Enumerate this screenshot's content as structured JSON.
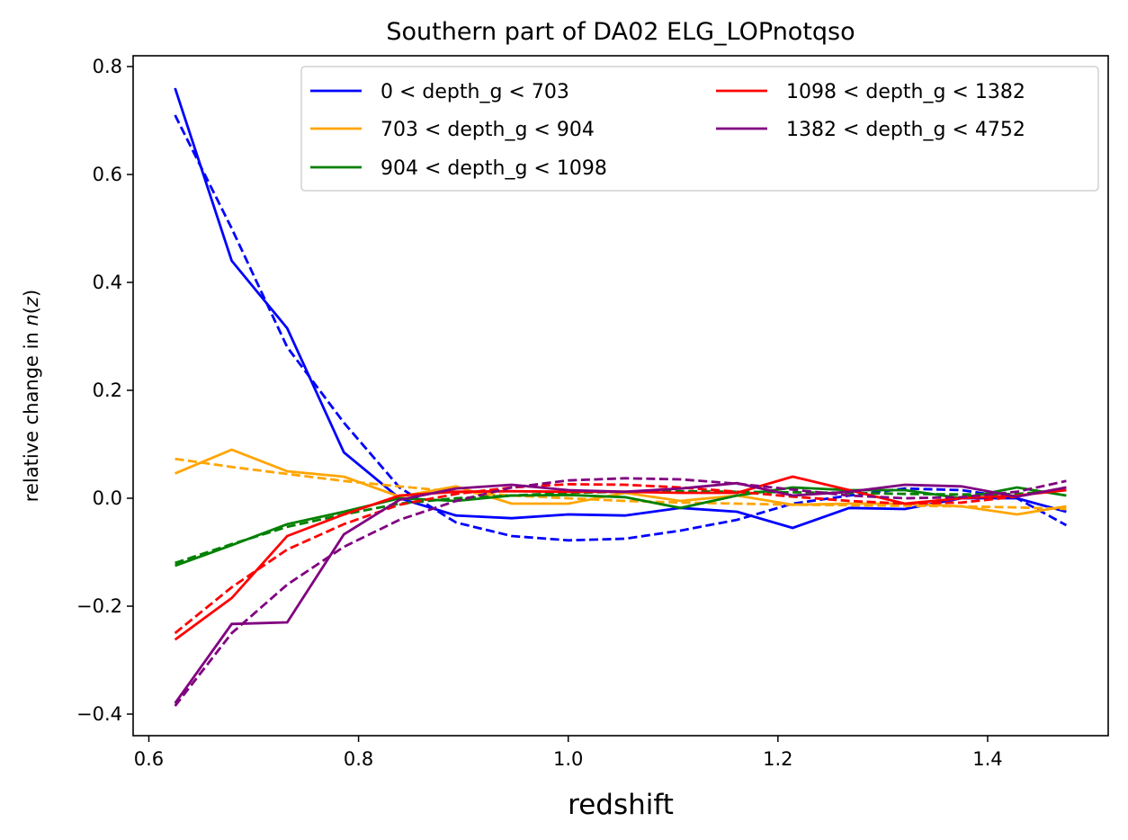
{
  "chart_data": {
    "type": "line",
    "title": "Southern part of DA02 ELG_LOPnotqso",
    "xlabel": "redshift",
    "ylabel": {
      "prefix": "relative change in ",
      "func": "n",
      "open": "(",
      "var": "z",
      "close": ")"
    },
    "xlim": [
      0.585,
      1.515
    ],
    "ylim": [
      -0.44,
      0.82
    ],
    "xticks": [
      0.6,
      0.8,
      1.0,
      1.2,
      1.4
    ],
    "xtick_labels": [
      "0.6",
      "0.8",
      "1.0",
      "1.2",
      "1.4"
    ],
    "yticks": [
      -0.4,
      -0.2,
      0.0,
      0.2,
      0.4,
      0.6,
      0.8
    ],
    "ytick_labels": [
      "−0.4",
      "−0.2",
      "0.0",
      "0.2",
      "0.4",
      "0.6",
      "0.8"
    ],
    "grid": false,
    "legend_position": "top-right",
    "legend_columns": 2,
    "x": [
      0.625,
      0.679,
      0.732,
      0.786,
      0.839,
      0.893,
      0.946,
      1.0,
      1.054,
      1.107,
      1.161,
      1.214,
      1.268,
      1.321,
      1.375,
      1.428,
      1.475
    ],
    "series": [
      {
        "name": "0 < depth_g < 703",
        "color": "#0000ff",
        "values": [
          0.76,
          0.44,
          0.315,
          0.085,
          0.0,
          -0.032,
          -0.037,
          -0.03,
          -0.032,
          -0.018,
          -0.025,
          -0.055,
          -0.018,
          -0.02,
          0.0,
          0.0,
          -0.025
        ],
        "fit": [
          0.71,
          0.5,
          0.28,
          0.14,
          0.02,
          -0.045,
          -0.07,
          -0.078,
          -0.075,
          -0.06,
          -0.04,
          -0.01,
          0.005,
          0.018,
          0.015,
          0.0,
          -0.05
        ]
      },
      {
        "name": "703 < depth_g < 904",
        "color": "#ffa500",
        "values": [
          0.046,
          0.09,
          0.05,
          0.04,
          0.003,
          0.022,
          -0.01,
          -0.01,
          0.01,
          -0.005,
          0.005,
          -0.012,
          -0.01,
          -0.01,
          -0.015,
          -0.03,
          -0.015
        ],
        "fit": [
          0.073,
          0.058,
          0.045,
          0.032,
          0.022,
          0.012,
          0.005,
          0.0,
          -0.005,
          -0.008,
          -0.01,
          -0.012,
          -0.013,
          -0.014,
          -0.015,
          -0.017,
          -0.02
        ]
      },
      {
        "name": "904 < depth_g < 1098",
        "color": "#008000",
        "values": [
          -0.125,
          -0.087,
          -0.048,
          -0.025,
          0.0,
          -0.005,
          0.005,
          0.006,
          0.002,
          -0.018,
          0.005,
          0.02,
          0.015,
          0.015,
          0.0,
          0.02,
          0.005
        ],
        "fit": [
          -0.12,
          -0.085,
          -0.053,
          -0.03,
          -0.01,
          0.0,
          0.005,
          0.01,
          0.012,
          0.013,
          0.012,
          0.011,
          0.01,
          0.008,
          0.007,
          0.008,
          0.015
        ]
      },
      {
        "name": "1098 < depth_g < 1382",
        "color": "#ff0000",
        "values": [
          -0.262,
          -0.185,
          -0.07,
          -0.03,
          0.005,
          0.012,
          0.013,
          0.012,
          0.012,
          0.01,
          0.01,
          0.04,
          0.015,
          -0.01,
          0.0,
          0.005,
          0.015
        ],
        "fit": [
          -0.25,
          -0.165,
          -0.095,
          -0.048,
          -0.012,
          0.008,
          0.02,
          0.026,
          0.025,
          0.02,
          0.012,
          0.003,
          -0.005,
          -0.01,
          -0.008,
          0.003,
          0.02
        ]
      },
      {
        "name": "1382 < depth_g < 4752",
        "color": "#800080",
        "values": [
          -0.38,
          -0.233,
          -0.23,
          -0.067,
          -0.003,
          0.018,
          0.025,
          0.015,
          0.012,
          0.018,
          0.028,
          0.005,
          0.012,
          0.025,
          0.022,
          0.003,
          0.02
        ],
        "fit": [
          -0.385,
          -0.25,
          -0.16,
          -0.09,
          -0.04,
          -0.005,
          0.02,
          0.033,
          0.037,
          0.035,
          0.027,
          0.016,
          0.005,
          0.0,
          0.002,
          0.012,
          0.032
        ]
      }
    ]
  }
}
